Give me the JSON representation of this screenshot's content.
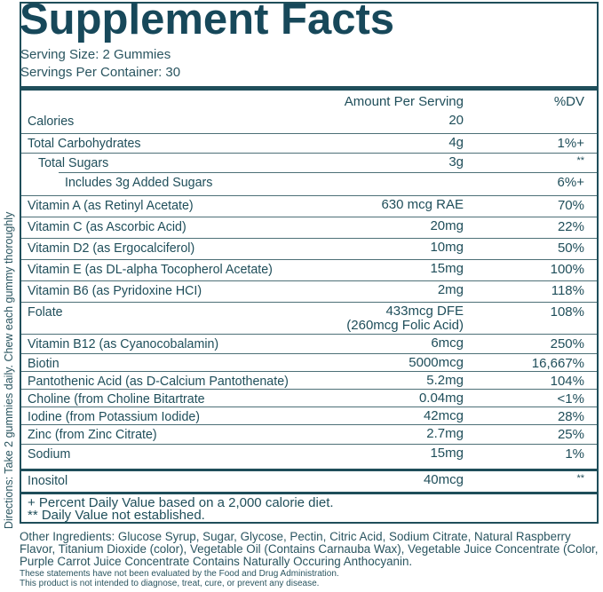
{
  "title": "Supplement Facts",
  "serving_size": "Serving Size: 2 Gummies",
  "servings_per_container": "Servings Per Container: 30",
  "header": {
    "amount": "Amount Per Serving",
    "dv": "%DV"
  },
  "rows": [
    {
      "label": "Calories",
      "amount": "20",
      "dv": ""
    },
    {
      "label": "Total Carbohydrates",
      "amount": "4g",
      "dv": "1%+"
    },
    {
      "label": "Total Sugars",
      "amount": "3g",
      "dv": "**"
    },
    {
      "label": "Includes 3g Added Sugars",
      "amount": "",
      "dv": "6%+"
    },
    {
      "label": "Vitamin A (as Retinyl Acetate)",
      "amount": "630 mcg RAE",
      "dv": "70%"
    },
    {
      "label": "Vitamin C (as Ascorbic Acid)",
      "amount": "20mg",
      "dv": "22%"
    },
    {
      "label": "Vitamin D2 (as Ergocalciferol)",
      "amount": "10mg",
      "dv": "50%"
    },
    {
      "label": "Vitamin E (as DL-alpha Tocopherol Acetate)",
      "amount": "15mg",
      "dv": "100%"
    },
    {
      "label": "Vitamin B6 (as Pyridoxine HCI)",
      "amount": "2mg",
      "dv": "118%"
    },
    {
      "label": "Folate",
      "amount": "433mcg DFE",
      "amount2": "(260mcg Folic Acid)",
      "dv": "108%"
    },
    {
      "label": "Vitamin B12 (as Cyanocobalamin)",
      "amount": "6mcg",
      "dv": "250%"
    },
    {
      "label": "Biotin",
      "amount": "5000mcg",
      "dv": "16,667%"
    },
    {
      "label": "Pantothenic Acid (as D-Calcium Pantothenate)",
      "amount": "5.2mg",
      "dv": "104%"
    },
    {
      "label": "Choline (from Choline Bitartrate",
      "amount": "0.04mg",
      "dv": "<1%"
    },
    {
      "label": "Iodine (from Potassium Iodide)",
      "amount": "42mcg",
      "dv": "28%"
    },
    {
      "label": "Zinc (from Zinc Citrate)",
      "amount": "2.7mg",
      "dv": "25%"
    },
    {
      "label": "Sodium",
      "amount": "15mg",
      "dv": "1%"
    },
    {
      "label": "Inositol",
      "amount": "40mcg",
      "dv": "**"
    }
  ],
  "footnotes": [
    "+ Percent Daily Value based on a 2,000 calorie diet.",
    "** Daily Value not established."
  ],
  "other_ingredients": "Other Ingredients: Glucose Syrup, Sugar, Glycose, Pectin, Citric Acid, Sodium Citrate, Natural Raspberry Flavor, Titanium Dioxide (color), Vegetable Oil (Contains Carnauba Wax), Vegetable Juice Concentrate (Color, Purple Carrot Juice Concentrate Contains Naturally Occuring Anthocyanin.",
  "disclaimer": [
    "These statements have not been evaluated by the Food and Drug Administration.",
    "This product is not intended to diagnose, treat, cure, or prevent any disease."
  ],
  "directions": "Directions: Take 2 gummies daily. Chew each gummy thoroughly",
  "colors": {
    "primary": "#1f4e5a"
  }
}
